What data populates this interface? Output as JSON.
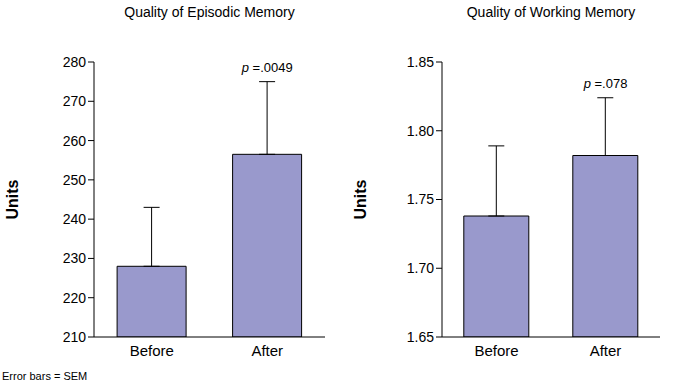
{
  "chart_data": [
    {
      "type": "bar",
      "title": "Quality of Episodic Memory",
      "y_label": "Units",
      "categories": [
        "Before",
        "After"
      ],
      "values": [
        228,
        256.5
      ],
      "errors": [
        15,
        18.5
      ],
      "color": "#9999cc",
      "ylim": [
        210,
        280
      ],
      "yticks": [
        210,
        220,
        230,
        240,
        250,
        260,
        270,
        280
      ],
      "grid": false,
      "annotations": [
        {
          "text": "p =.0049",
          "category": "After"
        }
      ]
    },
    {
      "type": "bar",
      "title": "Quality of Working Memory",
      "y_label": "Units",
      "categories": [
        "Before",
        "After"
      ],
      "values": [
        1.738,
        1.782
      ],
      "errors": [
        0.051,
        0.042
      ],
      "color": "#9999cc",
      "ylim": [
        1.65,
        1.85
      ],
      "yticks": [
        1.65,
        {
          "value": 1.7,
          "label": "1.70"
        },
        1.75,
        {
          "value": 1.8,
          "label": "1.80"
        },
        1.85
      ],
      "grid": false,
      "annotations": [
        {
          "text": "p =.078",
          "category": "After"
        }
      ]
    }
  ],
  "footnote": "Error bars = SEM"
}
